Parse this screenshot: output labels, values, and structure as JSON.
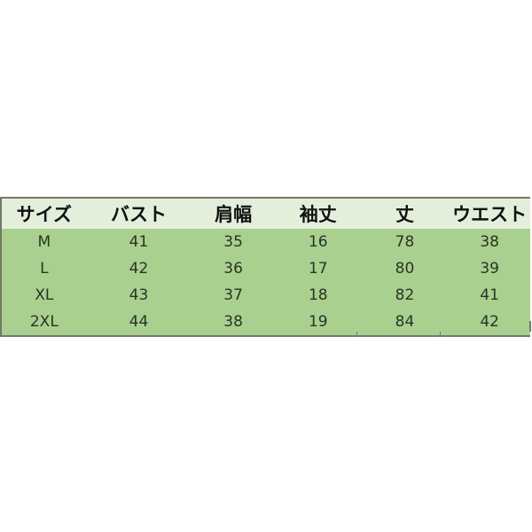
{
  "table": {
    "headers": [
      "サイズ",
      "バスト",
      "肩幅",
      "袖丈",
      "丈",
      "ウエスト"
    ],
    "rows": [
      [
        "M",
        "41",
        "35",
        "16",
        "78",
        "38"
      ],
      [
        "L",
        "42",
        "36",
        "17",
        "80",
        "39"
      ],
      [
        "XL",
        "43",
        "37",
        "18",
        "82",
        "41"
      ],
      [
        "2XL",
        "44",
        "38",
        "19",
        "84",
        "42"
      ]
    ]
  },
  "colors": {
    "header_bg": "#e3efdb",
    "body_bg": "#a9d08e",
    "border": "#6f7a6a"
  }
}
